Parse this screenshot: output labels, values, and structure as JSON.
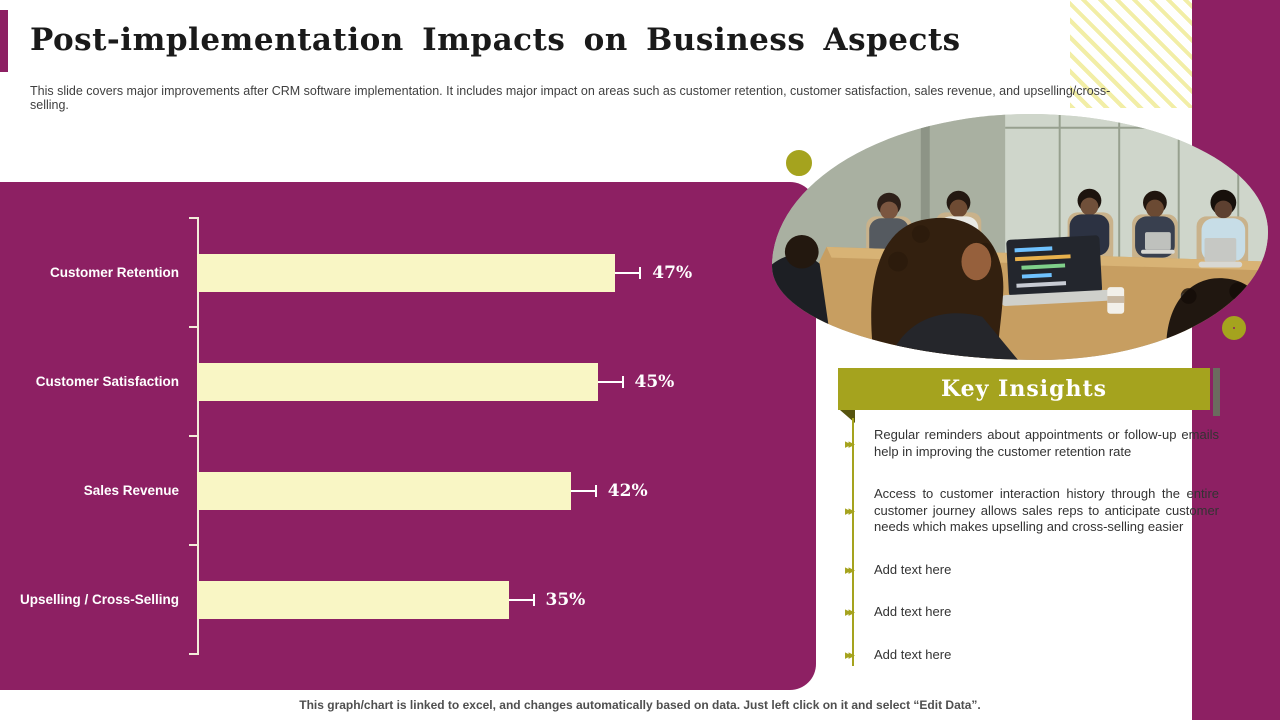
{
  "slide": {
    "title": "Post-implementation Impacts on Business Aspects",
    "subtitle": "This slide covers major improvements after CRM software implementation. It includes major impact on areas such as customer retention, customer satisfaction, sales revenue, and upselling/cross-selling.",
    "footer": "This graph/chart is linked to excel,  and changes automatically based on data. Just left click on it and select “Edit Data”."
  },
  "chart_data": {
    "type": "bar",
    "orientation": "horizontal",
    "categories": [
      "Customer Retention",
      "Customer Satisfaction",
      "Sales Revenue",
      "Upselling / Cross-Selling"
    ],
    "values": [
      47,
      45,
      42,
      35
    ],
    "value_labels": [
      "47%",
      "45%",
      "42%",
      "35%"
    ],
    "xlim": [
      0,
      53
    ],
    "title": "",
    "xlabel": "",
    "ylabel": "",
    "grid": false,
    "error_bars": true,
    "bar_color": "#F9F6C5",
    "panel_color": "#8D2063",
    "label_color": "#FFFFFF"
  },
  "insights": {
    "title": "Key Insights",
    "items": [
      "Regular reminders about appointments or follow-up emails help in improving  the customer retention rate",
      "Access to customer interaction history through  the  entire customer journey allows sales reps to anticipate customer needs which makes upselling and cross-selling easier",
      "Add text here",
      "Add text here",
      "Add text here"
    ]
  },
  "decor": {
    "accent_magenta": "#8D2063",
    "accent_olive": "#A5A31E",
    "photo_alt": "business-team-meeting-photo"
  }
}
